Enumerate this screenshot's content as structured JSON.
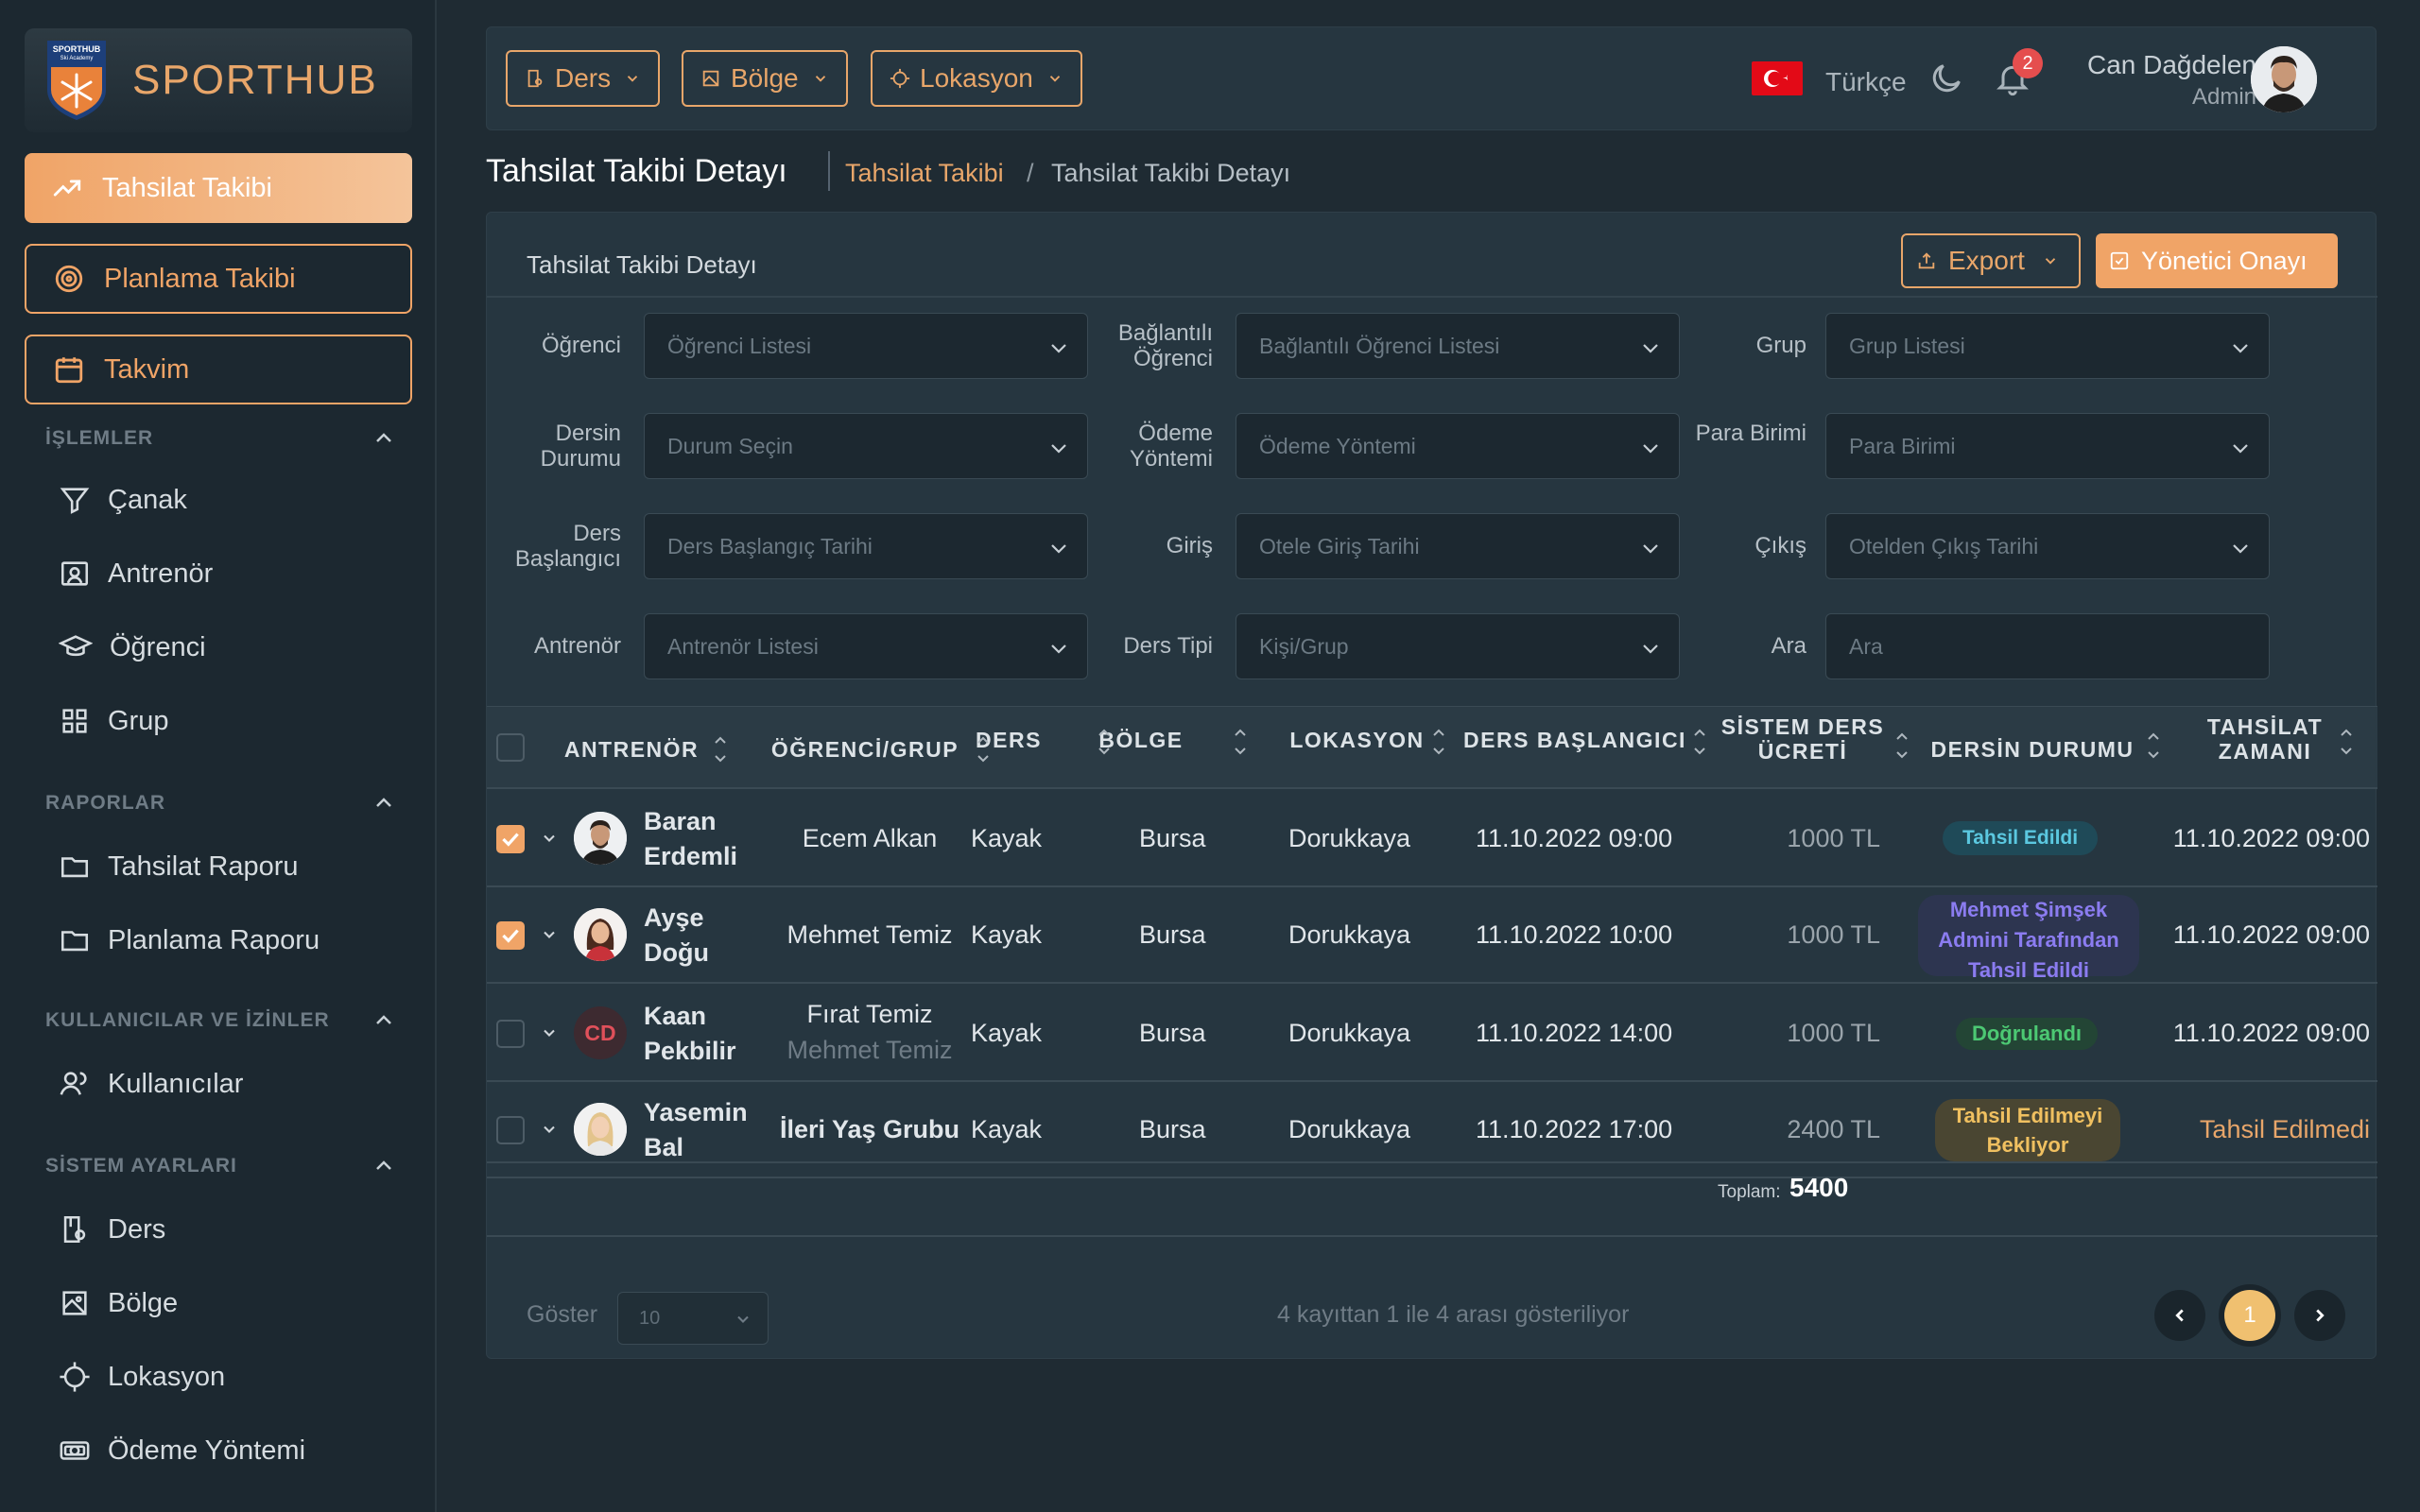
{
  "brand": {
    "name": "SPORTHUB",
    "logo_top": "SPORTHUB",
    "logo_sub": "Ski Academy"
  },
  "nav": {
    "primary": [
      {
        "label": "Tahsilat Takibi",
        "icon": "trending-up-icon",
        "active": true
      },
      {
        "label": "Planlama Takibi",
        "icon": "target-icon",
        "active": false
      },
      {
        "label": "Takvim",
        "icon": "calendar-icon",
        "active": false
      }
    ],
    "sections": [
      {
        "title": "İŞLEMLER",
        "items": [
          {
            "label": "Çanak",
            "icon": "funnel-icon"
          },
          {
            "label": "Antrenör",
            "icon": "id-card-icon"
          },
          {
            "label": "Öğrenci",
            "icon": "graduation-cap-icon"
          },
          {
            "label": "Grup",
            "icon": "grid-icon"
          }
        ]
      },
      {
        "title": "RAPORLAR",
        "items": [
          {
            "label": "Tahsilat Raporu",
            "icon": "folder-icon"
          },
          {
            "label": "Planlama Raporu",
            "icon": "folder-icon"
          }
        ]
      },
      {
        "title": "KULLANICILAR VE İZİNLER",
        "items": [
          {
            "label": "Kullanıcılar",
            "icon": "users-icon"
          }
        ]
      },
      {
        "title": "SİSTEM AYARLARI",
        "items": [
          {
            "label": "Ders",
            "icon": "lesson-icon"
          },
          {
            "label": "Bölge",
            "icon": "map-icon"
          },
          {
            "label": "Lokasyon",
            "icon": "crosshair-icon"
          },
          {
            "label": "Ödeme Yöntemi",
            "icon": "money-icon"
          }
        ]
      }
    ]
  },
  "topbar": {
    "filters": [
      "Ders",
      "Bölge",
      "Lokasyon"
    ],
    "language": "Türkçe",
    "notifications": "2",
    "user_name": "Can Dağdelen",
    "user_role": "Admin"
  },
  "page": {
    "title": "Tahsilat Takibi Detayı",
    "breadcrumb_link": "Tahsilat Takibi",
    "breadcrumb_sep": "/",
    "breadcrumb_current": "Tahsilat Takibi Detayı"
  },
  "panel": {
    "title": "Tahsilat Takibi Detayı",
    "export_label": "Export",
    "approve_label": "Yönetici Onayı"
  },
  "filters": [
    [
      {
        "label": "Öğrenci",
        "placeholder": "Öğrenci Listesi"
      },
      {
        "label": "Bağlantılı Öğrenci",
        "placeholder": "Bağlantılı Öğrenci Listesi"
      },
      {
        "label": "Grup",
        "placeholder": "Grup Listesi"
      }
    ],
    [
      {
        "label": "Dersin Durumu",
        "placeholder": "Durum Seçin"
      },
      {
        "label": "Ödeme Yöntemi",
        "placeholder": "Ödeme Yöntemi"
      },
      {
        "label": "Para Birimi",
        "placeholder": "Para Birimi"
      }
    ],
    [
      {
        "label": "Ders Başlangıcı",
        "placeholder": "Ders Başlangıç Tarihi"
      },
      {
        "label": "Giriş",
        "placeholder": "Otele Giriş Tarihi"
      },
      {
        "label": "Çıkış",
        "placeholder": "Otelden Çıkış Tarihi"
      }
    ],
    [
      {
        "label": "Antrenör",
        "placeholder": "Antrenör Listesi"
      },
      {
        "label": "Ders Tipi",
        "placeholder": "Kişi/Grup"
      },
      {
        "label": "Ara",
        "placeholder": "Ara"
      }
    ]
  ],
  "table": {
    "columns": [
      "ANTRENÖR",
      "ÖĞRENCİ/GRUP",
      "DERS",
      "BÖLGE",
      "LOKASYON",
      "DERS BAŞLANGICI",
      "SİSTEM DERS ÜCRETİ",
      "DERSİN DURUMU",
      "TAHSİLAT ZAMANI"
    ],
    "rows": [
      {
        "checked": true,
        "coach": "Baran Erdemli",
        "student": "Ecem Alkan",
        "student2": "",
        "lesson": "Kayak",
        "region": "Bursa",
        "location": "Dorukkaya",
        "start": "11.10.2022 09:00",
        "fee": "1000 TL",
        "status": "Tahsil Edildi",
        "status_color": "#5bc8e0",
        "status_bg": "#1f4a58",
        "collected": "11.10.2022 09:00"
      },
      {
        "checked": true,
        "coach": "Ayşe Doğu",
        "student": "Mehmet Temiz",
        "student2": "",
        "lesson": "Kayak",
        "region": "Bursa",
        "location": "Dorukkaya",
        "start": "11.10.2022 10:00",
        "fee": "1000 TL",
        "status": "Mehmet Şimşek Admini Tarafından Tahsil Edildi",
        "status_color": "#8b7cf0",
        "status_bg": "#2d3550",
        "collected": "11.10.2022 09:00"
      },
      {
        "checked": false,
        "coach": "Kaan Pekbilir",
        "initials": "CD",
        "student": "Fırat Temiz",
        "student2": "Mehmet Temiz",
        "lesson": "Kayak",
        "region": "Bursa",
        "location": "Dorukkaya",
        "start": "11.10.2022 14:00",
        "fee": "1000 TL",
        "status": "Doğrulandı",
        "status_color": "#4cc873",
        "status_bg": "#234535",
        "collected": "11.10.2022 09:00"
      },
      {
        "checked": false,
        "coach": "Yasemin Bal",
        "student": "İleri Yaş Grubu",
        "student2": "",
        "lesson": "Kayak",
        "region": "Bursa",
        "location": "Dorukkaya",
        "start": "11.10.2022 17:00",
        "fee": "2400 TL",
        "status": "Tahsil Edilmeyi Bekliyor",
        "status_color": "#f0c060",
        "status_bg": "#4a4632",
        "collected": "Tahsil Edilmedi"
      }
    ],
    "total_label": "Toplam:",
    "total_value": "5400"
  },
  "footer": {
    "show_label": "Göster",
    "page_size": "10",
    "record_info": "4 kayıttan 1 ile 4 arası gösteriliyor",
    "current_page": "1"
  },
  "colors": {
    "accent": "#f0a467",
    "bg": "#1f2b33",
    "panel": "#263640"
  }
}
